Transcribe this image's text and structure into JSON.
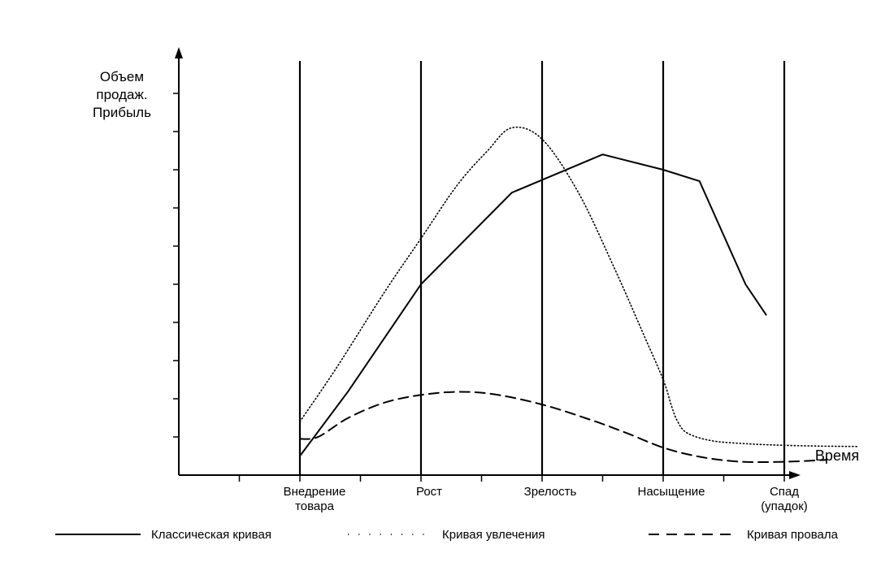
{
  "chart_data": {
    "type": "line",
    "ylabel": [
      "Объем",
      "продаж.",
      "Прибыль"
    ],
    "xlabel": "Время",
    "stages": [
      [
        "Внедрение",
        "товара"
      ],
      [
        "Рост"
      ],
      [
        "Зрелость"
      ],
      [
        "Насыщение"
      ],
      [
        "Спад",
        "(упадок)"
      ]
    ],
    "stage_boundaries": [
      1,
      2,
      3,
      4,
      5
    ],
    "xlim": [
      0,
      5.67
    ],
    "ylim": [
      0,
      10
    ],
    "grid": false,
    "legend_position": "bottom",
    "series": [
      {
        "name": "Классическая кривая",
        "style": "solid",
        "x": [
          1.0,
          1.4,
          2.0,
          2.75,
          3.5,
          4.0,
          4.3,
          4.68,
          4.85
        ],
        "y": [
          0.5,
          2.2,
          5.0,
          7.4,
          8.4,
          8.0,
          7.7,
          5.0,
          4.2
        ]
      },
      {
        "name": "Кривая увлечения",
        "style": "dotted",
        "x": [
          1.0,
          1.3,
          1.7,
          2.0,
          2.3,
          2.55,
          2.75,
          3.0,
          3.3,
          3.6,
          3.85,
          4.0,
          4.07,
          4.12,
          4.2,
          4.4,
          4.7,
          5.0,
          5.3,
          5.6
        ],
        "y": [
          1.4,
          2.8,
          4.8,
          6.2,
          7.6,
          8.5,
          9.1,
          8.8,
          7.4,
          5.4,
          3.6,
          2.5,
          1.8,
          1.4,
          1.1,
          0.9,
          0.82,
          0.78,
          0.76,
          0.75
        ]
      },
      {
        "name": "Кривая провала",
        "style": "dashed",
        "x": [
          1.0,
          1.15,
          1.4,
          1.7,
          2.0,
          2.3,
          2.6,
          3.0,
          3.4,
          3.7,
          4.0,
          4.3,
          4.6,
          4.85,
          5.1,
          5.35
        ],
        "y": [
          0.95,
          1.0,
          1.5,
          1.9,
          2.1,
          2.18,
          2.12,
          1.85,
          1.45,
          1.1,
          0.72,
          0.48,
          0.36,
          0.34,
          0.36,
          0.4
        ]
      }
    ]
  }
}
